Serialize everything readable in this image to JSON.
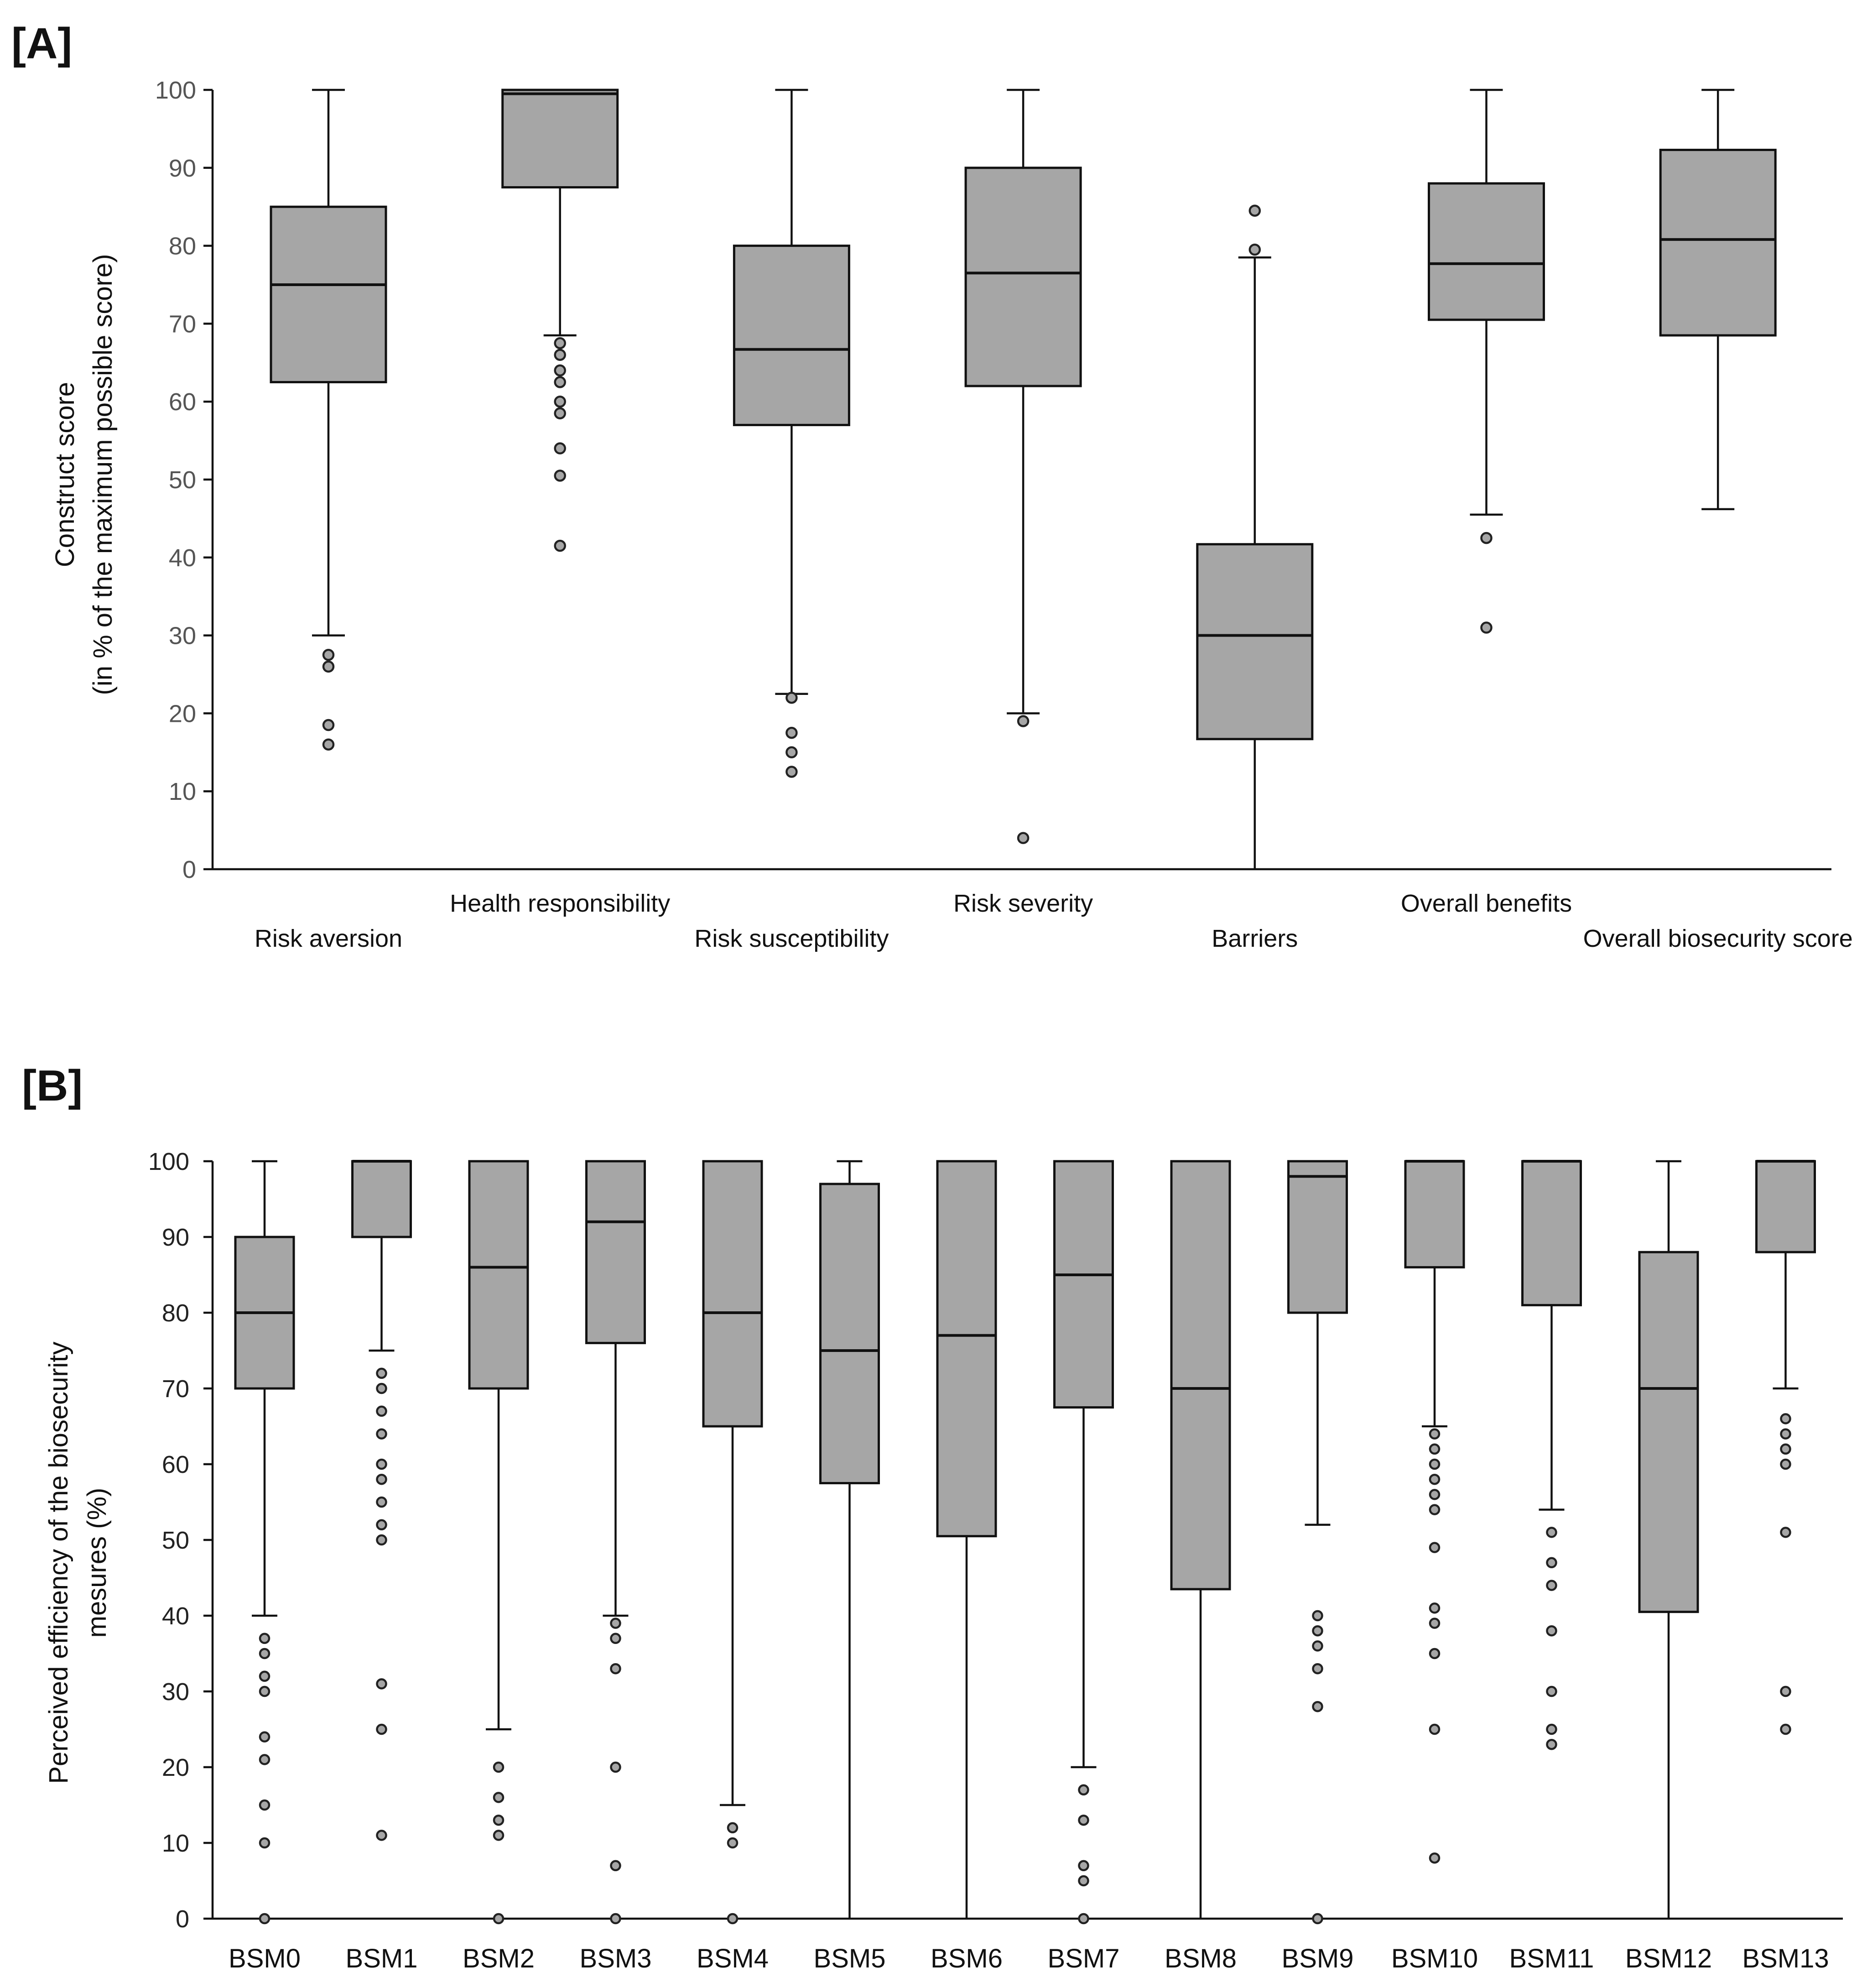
{
  "chart_data": [
    {
      "panel_label": "[A]",
      "type": "box",
      "ylabel_line1": "Construct score",
      "ylabel_line2": "(in % of the maximum possible score)",
      "ylim": [
        0,
        100
      ],
      "yticks": [
        0,
        10,
        20,
        30,
        40,
        50,
        60,
        70,
        80,
        90,
        100
      ],
      "categories": [
        "Risk aversion",
        "Health responsibility",
        "Risk susceptibility",
        "Risk severity",
        "Barriers",
        "Overall benefits",
        "Overall biosecurity score"
      ],
      "boxes": [
        {
          "whisker_low": 30,
          "q1": 62.5,
          "median": 75,
          "q3": 85,
          "whisker_high": 100,
          "outliers": [
            27.5,
            26,
            18.5,
            16
          ]
        },
        {
          "whisker_low": 68.5,
          "q1": 87.5,
          "median": 99.5,
          "q3": 100,
          "whisker_high": 100,
          "outliers": [
            67.5,
            66,
            64,
            62.5,
            60,
            58.5,
            54,
            50.5,
            41.5
          ]
        },
        {
          "whisker_low": 22.5,
          "q1": 57,
          "median": 66.7,
          "q3": 80,
          "whisker_high": 100,
          "outliers": [
            22,
            17.5,
            15,
            12.5
          ]
        },
        {
          "whisker_low": 20,
          "q1": 62,
          "median": 76.5,
          "q3": 90,
          "whisker_high": 100,
          "outliers": [
            19,
            4
          ]
        },
        {
          "whisker_low": 0,
          "q1": 16.7,
          "median": 30,
          "q3": 41.7,
          "whisker_high": 78.5,
          "outliers": [
            79.5,
            84.5
          ]
        },
        {
          "whisker_low": 45.5,
          "q1": 70.5,
          "median": 77.7,
          "q3": 88,
          "whisker_high": 100,
          "outliers": [
            42.5,
            31
          ]
        },
        {
          "whisker_low": 46.2,
          "q1": 68.5,
          "median": 80.8,
          "q3": 92.3,
          "whisker_high": 100,
          "outliers": []
        }
      ]
    },
    {
      "panel_label": "[B]",
      "type": "box",
      "ylabel_line1": "Perceived efficiency of the biosecurity",
      "ylabel_line2": "mesures (%)",
      "ylim": [
        0,
        100
      ],
      "yticks": [
        0,
        10,
        20,
        30,
        40,
        50,
        60,
        70,
        80,
        90,
        100
      ],
      "categories": [
        "BSM0",
        "BSM1",
        "BSM2",
        "BSM3",
        "BSM4",
        "BSM5",
        "BSM6",
        "BSM7",
        "BSM8",
        "BSM9",
        "BSM10",
        "BSM11",
        "BSM12",
        "BSM13"
      ],
      "boxes": [
        {
          "whisker_low": 40,
          "q1": 70,
          "median": 80,
          "q3": 90,
          "whisker_high": 100,
          "outliers": [
            37,
            35,
            32,
            30,
            24,
            21,
            15,
            10,
            0
          ]
        },
        {
          "whisker_low": 75,
          "q1": 90,
          "median": 100,
          "q3": 100,
          "whisker_high": 100,
          "outliers": [
            72,
            70,
            67,
            64,
            60,
            58,
            55,
            52,
            50,
            31,
            25,
            11
          ]
        },
        {
          "whisker_low": 25,
          "q1": 70,
          "median": 86,
          "q3": 100,
          "whisker_high": 100,
          "outliers": [
            20,
            16,
            13,
            11,
            0
          ]
        },
        {
          "whisker_low": 40,
          "q1": 76,
          "median": 92,
          "q3": 100,
          "whisker_high": 100,
          "outliers": [
            39,
            37,
            33,
            20,
            7,
            0
          ]
        },
        {
          "whisker_low": 15,
          "q1": 65,
          "median": 80,
          "q3": 100,
          "whisker_high": 100,
          "outliers": [
            12,
            10,
            0
          ]
        },
        {
          "whisker_low": 0,
          "q1": 57.5,
          "median": 75,
          "q3": 97,
          "whisker_high": 100,
          "outliers": []
        },
        {
          "whisker_low": 0,
          "q1": 50.5,
          "median": 77,
          "q3": 100,
          "whisker_high": 100,
          "outliers": []
        },
        {
          "whisker_low": 20,
          "q1": 67.5,
          "median": 85,
          "q3": 100,
          "whisker_high": 100,
          "outliers": [
            17,
            13,
            7,
            5,
            0
          ]
        },
        {
          "whisker_low": 0,
          "q1": 43.5,
          "median": 70,
          "q3": 100,
          "whisker_high": 100,
          "outliers": []
        },
        {
          "whisker_low": 52,
          "q1": 80,
          "median": 98,
          "q3": 100,
          "whisker_high": 100,
          "outliers": [
            40,
            38,
            36,
            33,
            28,
            0
          ]
        },
        {
          "whisker_low": 65,
          "q1": 86,
          "median": 100,
          "q3": 100,
          "whisker_high": 100,
          "outliers": [
            64,
            62,
            60,
            58,
            56,
            54,
            49,
            41,
            39,
            35,
            25,
            8
          ]
        },
        {
          "whisker_low": 54,
          "q1": 81,
          "median": 100,
          "q3": 100,
          "whisker_high": 100,
          "outliers": [
            51,
            47,
            44,
            38,
            30,
            25,
            23
          ]
        },
        {
          "whisker_low": 0,
          "q1": 40.5,
          "median": 70,
          "q3": 88,
          "whisker_high": 100,
          "outliers": []
        },
        {
          "whisker_low": 70,
          "q1": 88,
          "median": 100,
          "q3": 100,
          "whisker_high": 100,
          "outliers": [
            66,
            64,
            62,
            60,
            51,
            30,
            25
          ]
        }
      ]
    }
  ]
}
